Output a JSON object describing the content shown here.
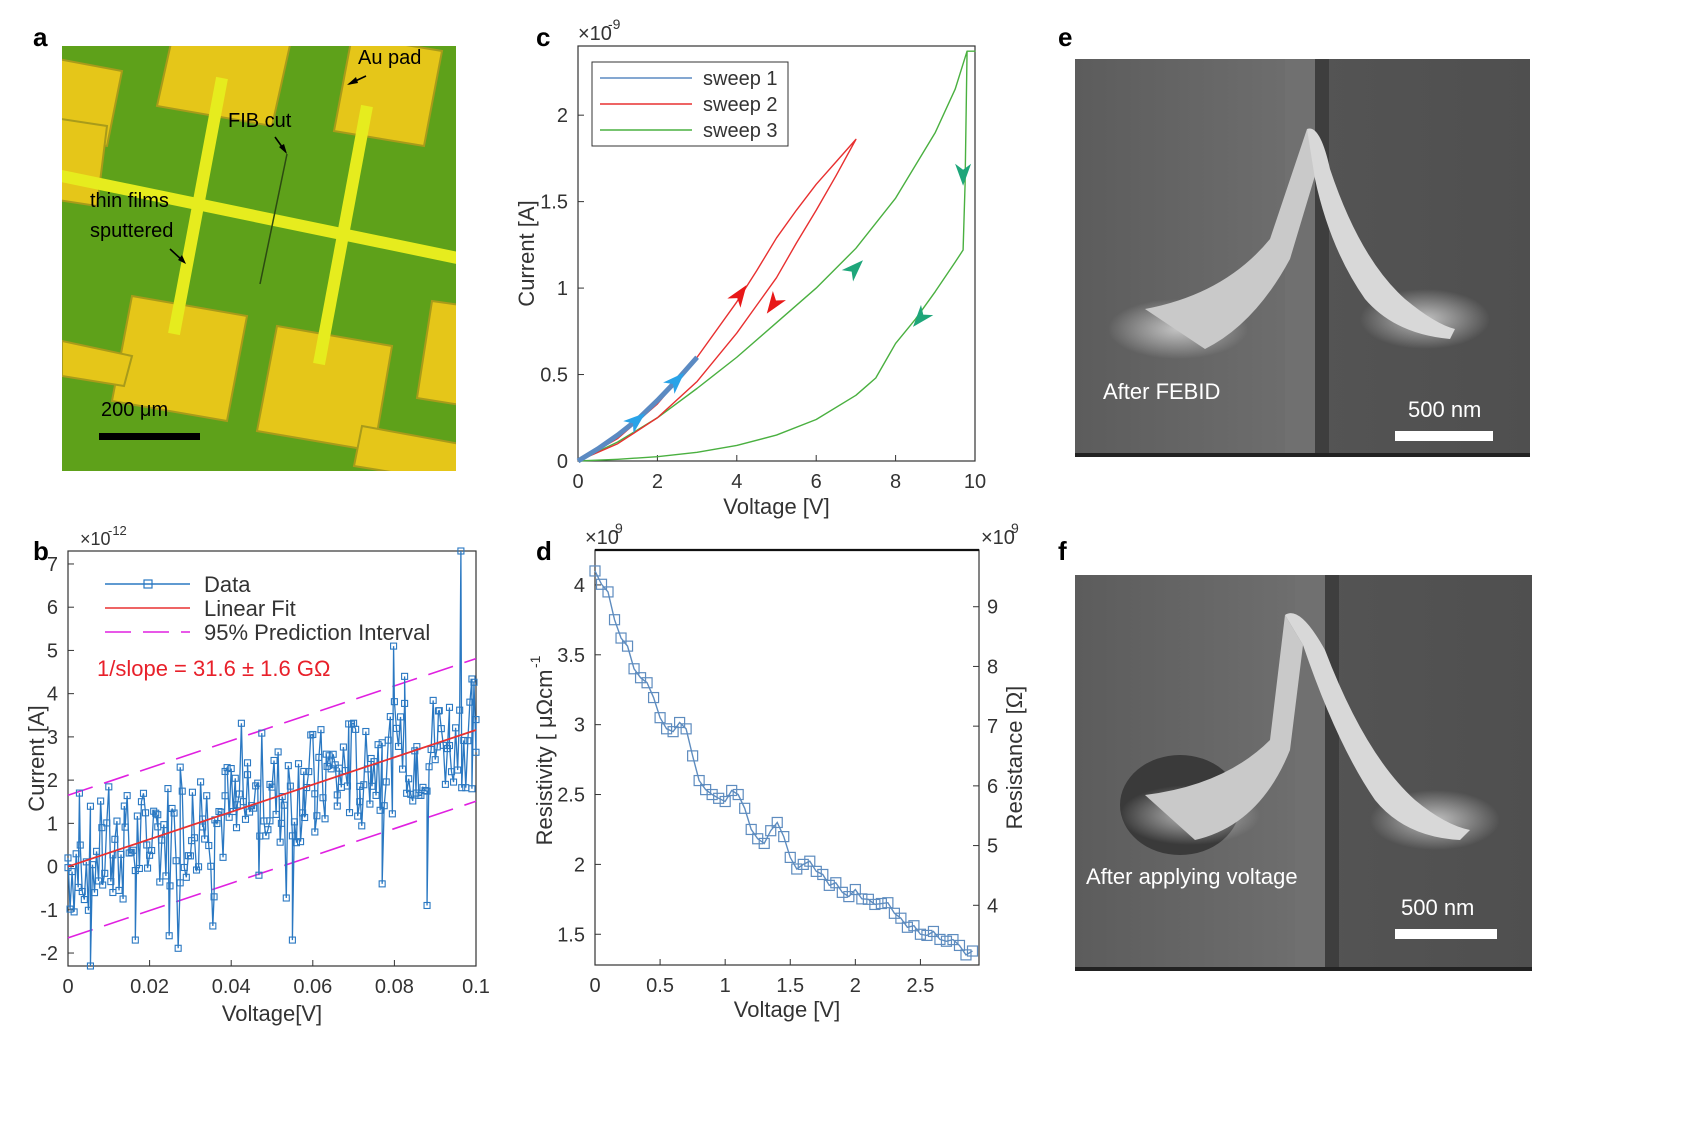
{
  "panels": {
    "a": {
      "label": "a",
      "annotations": [
        "Au pad",
        "FIB cut",
        "thin films",
        "sputtered"
      ],
      "scalebar": "200 μm"
    },
    "e": {
      "label": "e",
      "caption": "After FEBID",
      "scalebar": "500 nm"
    },
    "f": {
      "label": "f",
      "caption": "After applying voltage",
      "scalebar": "500 nm"
    }
  },
  "chart_data": [
    {
      "id": "b",
      "label": "b",
      "type": "scatter",
      "xlabel": "Voltage[V]",
      "ylabel": "Current [A]",
      "y_multiplier": "×10",
      "y_exponent": "-12",
      "xlim": [
        0,
        0.1
      ],
      "ylim": [
        -2.3,
        7.3
      ],
      "xticks": [
        "0",
        "0.02",
        "0.04",
        "0.06",
        "0.08",
        "0.1"
      ],
      "yticks": [
        "-2",
        "-1",
        "0",
        "1",
        "2",
        "3",
        "4",
        "5",
        "6",
        "7"
      ],
      "legend": [
        "Data",
        "Linear Fit",
        "95% Prediction Interval"
      ],
      "annotation": "1/slope = 31.6 ± 1.6 GΩ",
      "fit": {
        "intercept": 0.0,
        "slope_per_V": 31.6,
        "pi_halfwidth": 1.65
      },
      "series": [
        {
          "name": "Data",
          "x": [
            0.0,
            0.0028,
            0.0055,
            0.0083,
            0.011,
            0.0138,
            0.0165,
            0.0193,
            0.022,
            0.0248,
            0.0275,
            0.0303,
            0.033,
            0.0358,
            0.0385,
            0.0413,
            0.044,
            0.0468,
            0.0495,
            0.0523,
            0.055,
            0.0578,
            0.0605,
            0.0633,
            0.066,
            0.0688,
            0.0715,
            0.0743,
            0.077,
            0.0798,
            0.0825,
            0.0853,
            0.088,
            0.0908,
            0.0935,
            0.0963,
            0.099,
            0.1
          ],
          "y": [
            0.2,
            1.7,
            -2.3,
            0.9,
            -0.6,
            1.4,
            -1.7,
            0.5,
            1.2,
            -1.6,
            2.3,
            0.6,
            1.1,
            -0.7,
            2.2,
            0.9,
            2.4,
            -0.2,
            1.9,
            1.0,
            -1.7,
            2.2,
            0.8,
            2.6,
            1.4,
            3.3,
            1.5,
            2.5,
            -0.4,
            5.1,
            4.4,
            1.7,
            -0.9,
            3.6,
            2.8,
            7.3,
            1.8,
            3.4
          ]
        }
      ]
    },
    {
      "id": "c",
      "label": "c",
      "type": "line",
      "xlabel": "Voltage  [V]",
      "ylabel": "Current [A]",
      "y_multiplier": "×10",
      "y_exponent": "-9",
      "xlim": [
        0,
        10
      ],
      "ylim": [
        0,
        2.4
      ],
      "xticks": [
        "0",
        "2",
        "4",
        "6",
        "8",
        "10"
      ],
      "yticks": [
        "0",
        "0.5",
        "1",
        "1.5",
        "2"
      ],
      "series": [
        {
          "name": "sweep 1",
          "color": "#5b8ac2",
          "x": [
            0,
            0.5,
            1,
            1.5,
            2,
            2.5,
            3
          ],
          "y": [
            0,
            0.07,
            0.15,
            0.24,
            0.35,
            0.47,
            0.6
          ]
        },
        {
          "name": "sweep 2",
          "color": "#e83030",
          "x": [
            0,
            1,
            2,
            3,
            4,
            4.5,
            5,
            5.5,
            6,
            6.5,
            7,
            6.5,
            6,
            5.5,
            5,
            4.5,
            4,
            3,
            2,
            1,
            0
          ],
          "y": [
            0,
            0.13,
            0.33,
            0.6,
            0.92,
            1.1,
            1.29,
            1.45,
            1.6,
            1.73,
            1.86,
            1.65,
            1.45,
            1.26,
            1.06,
            0.9,
            0.74,
            0.46,
            0.25,
            0.1,
            0
          ]
        },
        {
          "name": "sweep 3",
          "color": "#4ab040",
          "x": [
            0,
            1,
            2,
            3,
            4,
            5,
            6,
            7,
            8,
            9,
            9.5,
            9.8,
            10,
            9.8,
            9.75,
            9.7,
            9.5,
            9,
            8.5,
            8,
            7.5,
            7.3,
            7,
            6,
            5,
            4,
            3,
            2,
            1,
            0
          ],
          "y": [
            0,
            0.11,
            0.25,
            0.42,
            0.6,
            0.8,
            1.0,
            1.23,
            1.52,
            1.9,
            2.15,
            2.37,
            2.37,
            2.37,
            1.6,
            1.22,
            1.15,
            0.98,
            0.82,
            0.68,
            0.48,
            0.44,
            0.38,
            0.24,
            0.15,
            0.09,
            0.05,
            0.025,
            0.01,
            0
          ]
        }
      ]
    },
    {
      "id": "d",
      "label": "d",
      "type": "line",
      "xlabel": "Voltage [V]",
      "ylabel": "Resistivity [ μΩcm",
      "ylabel_sup": "-1",
      "ylabel_right": "Resistance [Ω]",
      "y_multiplier": "×10",
      "y_exponent": "9",
      "y2_multiplier": "×10",
      "y2_exponent": "9",
      "xlim": [
        0,
        2.95
      ],
      "ylim": [
        1.28,
        4.25
      ],
      "y2lim": [
        3.0,
        9.95
      ],
      "xticks": [
        "0",
        "0.5",
        "1",
        "1.5",
        "2",
        "2.5"
      ],
      "yticks": [
        "1.5",
        "2",
        "2.5",
        "3",
        "3.5",
        "4"
      ],
      "y2ticks": [
        "4",
        "5",
        "6",
        "7",
        "8",
        "9"
      ],
      "series": [
        {
          "name": "Resistivity",
          "x": [
            0.0,
            0.1,
            0.2,
            0.3,
            0.4,
            0.5,
            0.6,
            0.7,
            0.8,
            0.9,
            1.0,
            1.1,
            1.2,
            1.3,
            1.4,
            1.5,
            1.6,
            1.7,
            1.8,
            1.9,
            2.0,
            2.1,
            2.2,
            2.3,
            2.4,
            2.5,
            2.6,
            2.7,
            2.8,
            2.9
          ],
          "y": [
            4.1,
            3.95,
            3.62,
            3.4,
            3.3,
            3.05,
            2.95,
            2.97,
            2.6,
            2.5,
            2.45,
            2.5,
            2.25,
            2.15,
            2.3,
            2.05,
            2.0,
            1.95,
            1.85,
            1.8,
            1.82,
            1.75,
            1.72,
            1.65,
            1.55,
            1.5,
            1.52,
            1.45,
            1.42,
            1.38
          ]
        }
      ]
    }
  ]
}
